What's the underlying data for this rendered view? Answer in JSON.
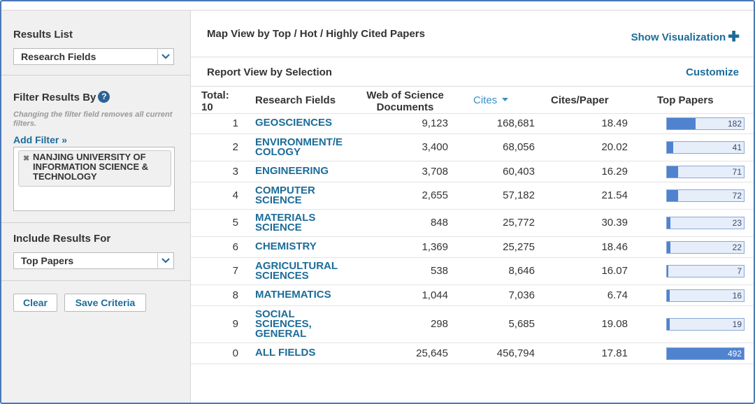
{
  "sidebar": {
    "results_list": {
      "title": "Results List",
      "selected": "Research Fields"
    },
    "filter": {
      "title": "Filter Results By",
      "note": "Changing the filter field removes all current filters.",
      "add_filter": "Add Filter »",
      "chips": [
        "NANJING UNIVERSITY OF INFORMATION SCIENCE & TECHNOLOGY"
      ]
    },
    "include": {
      "title": "Include Results For",
      "selected": "Top Papers"
    },
    "buttons": {
      "clear": "Clear",
      "save": "Save Criteria"
    }
  },
  "main": {
    "map_title": "Map View by Top / Hot / Highly Cited Papers",
    "show_visualization": "Show Visualization",
    "report_title": "Report View by Selection",
    "customize": "Customize",
    "columns": {
      "total": "Total: 10",
      "field": "Research Fields",
      "docs": "Web of Science Documents",
      "cites": "Cites",
      "cites_per_paper": "Cites/Paper",
      "top_papers": "Top Papers"
    },
    "top_papers_max": 492,
    "rows": [
      {
        "rank": "1",
        "field": "GEOSCIENCES",
        "docs": "9,123",
        "cites": "168,681",
        "cpp": "18.49",
        "top_papers": 182
      },
      {
        "rank": "2",
        "field": "ENVIRONMENT/ECOLOGY",
        "docs": "3,400",
        "cites": "68,056",
        "cpp": "20.02",
        "top_papers": 41
      },
      {
        "rank": "3",
        "field": "ENGINEERING",
        "docs": "3,708",
        "cites": "60,403",
        "cpp": "16.29",
        "top_papers": 71
      },
      {
        "rank": "4",
        "field": "COMPUTER SCIENCE",
        "docs": "2,655",
        "cites": "57,182",
        "cpp": "21.54",
        "top_papers": 72
      },
      {
        "rank": "5",
        "field": "MATERIALS SCIENCE",
        "docs": "848",
        "cites": "25,772",
        "cpp": "30.39",
        "top_papers": 23
      },
      {
        "rank": "6",
        "field": "CHEMISTRY",
        "docs": "1,369",
        "cites": "25,275",
        "cpp": "18.46",
        "top_papers": 22
      },
      {
        "rank": "7",
        "field": "AGRICULTURAL SCIENCES",
        "docs": "538",
        "cites": "8,646",
        "cpp": "16.07",
        "top_papers": 7
      },
      {
        "rank": "8",
        "field": "MATHEMATICS",
        "docs": "1,044",
        "cites": "7,036",
        "cpp": "6.74",
        "top_papers": 16
      },
      {
        "rank": "9",
        "field": "SOCIAL SCIENCES, GENERAL",
        "docs": "298",
        "cites": "5,685",
        "cpp": "19.08",
        "top_papers": 19
      },
      {
        "rank": "0",
        "field": "ALL FIELDS",
        "docs": "25,645",
        "cites": "456,794",
        "cpp": "17.81",
        "top_papers": 492
      }
    ]
  }
}
